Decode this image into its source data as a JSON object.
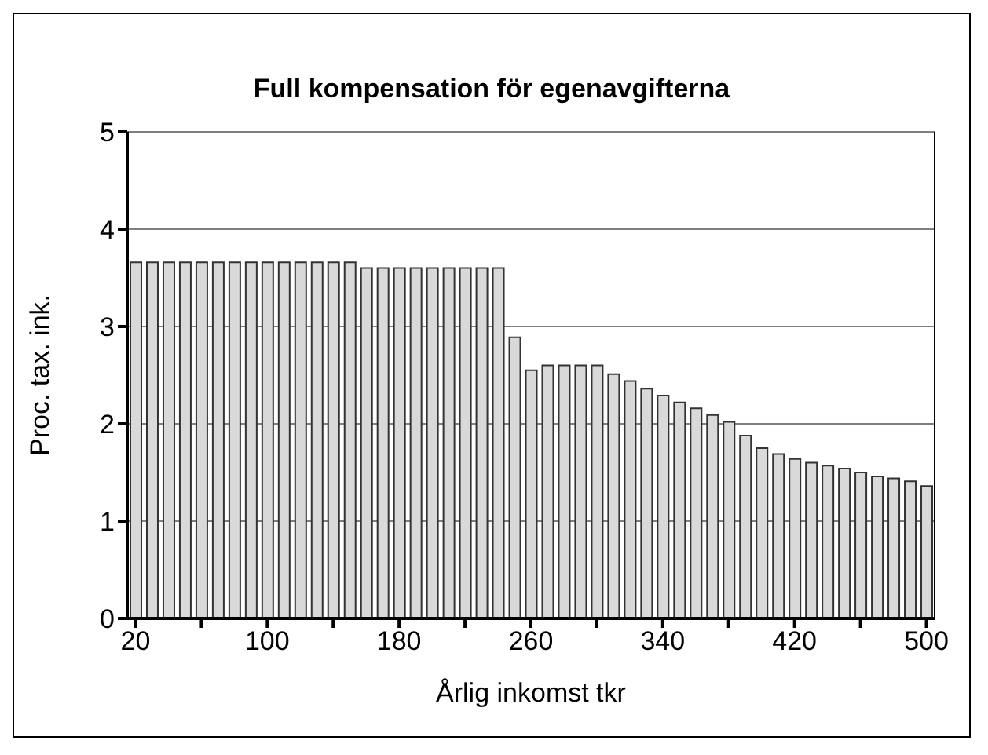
{
  "chart_data": {
    "type": "bar",
    "title": "Full kompensation för egenavgifterna",
    "xlabel": "Årlig inkomst tkr",
    "ylabel": "Proc. tax. ink.",
    "x": [
      20,
      30,
      40,
      50,
      60,
      70,
      80,
      90,
      100,
      110,
      120,
      130,
      140,
      150,
      160,
      170,
      180,
      190,
      200,
      210,
      220,
      230,
      240,
      250,
      260,
      270,
      280,
      290,
      300,
      310,
      320,
      330,
      340,
      350,
      360,
      370,
      380,
      390,
      400,
      410,
      420,
      430,
      440,
      450,
      460,
      470,
      480,
      490,
      500
    ],
    "values": [
      3.66,
      3.66,
      3.66,
      3.66,
      3.66,
      3.66,
      3.66,
      3.66,
      3.66,
      3.66,
      3.66,
      3.66,
      3.66,
      3.66,
      3.6,
      3.6,
      3.6,
      3.6,
      3.6,
      3.6,
      3.6,
      3.6,
      3.6,
      2.89,
      2.55,
      2.6,
      2.6,
      2.6,
      2.6,
      2.51,
      2.44,
      2.36,
      2.29,
      2.22,
      2.16,
      2.09,
      2.02,
      1.88,
      1.75,
      1.69,
      1.64,
      1.6,
      1.57,
      1.54,
      1.5,
      1.46,
      1.44,
      1.41,
      1.36
    ],
    "color": "#d9d9d9",
    "xlim": [
      15,
      505
    ],
    "xticks": [
      20,
      {
        "value": 60,
        "label": null
      },
      100,
      {
        "value": 140,
        "label": null
      },
      180,
      {
        "value": 220,
        "label": null
      },
      260,
      {
        "value": 300,
        "label": null
      },
      340,
      {
        "value": 380,
        "label": null
      },
      420,
      {
        "value": 460,
        "label": null
      },
      500
    ],
    "ylim": [
      0,
      5
    ],
    "yticks": [
      0,
      1,
      2,
      3,
      4,
      5
    ],
    "grid": "y"
  }
}
